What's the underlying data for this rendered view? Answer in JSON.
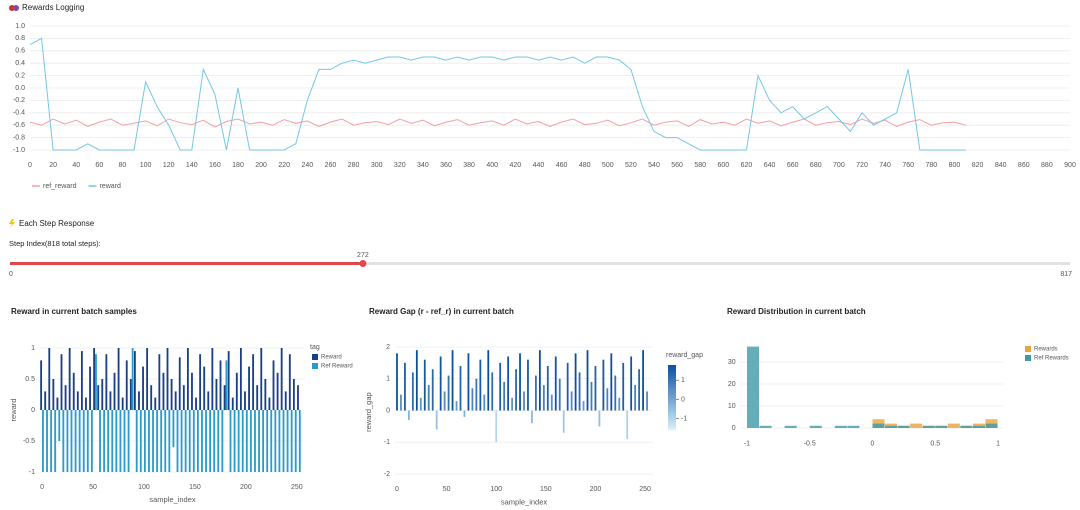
{
  "chart_data": [
    {
      "type": "line",
      "title": "Rewards Logging",
      "x": [
        0,
        10,
        20,
        30,
        40,
        50,
        60,
        70,
        80,
        90,
        100,
        110,
        120,
        130,
        140,
        150,
        160,
        170,
        180,
        190,
        200,
        210,
        220,
        230,
        240,
        250,
        260,
        270,
        280,
        290,
        300,
        310,
        320,
        330,
        340,
        350,
        360,
        370,
        380,
        390,
        400,
        410,
        420,
        430,
        440,
        450,
        460,
        470,
        480,
        490,
        500,
        510,
        520,
        530,
        540,
        550,
        560,
        570,
        580,
        590,
        600,
        610,
        620,
        630,
        640,
        650,
        660,
        670,
        680,
        690,
        700,
        710,
        720,
        730,
        740,
        750,
        760,
        770,
        780,
        790,
        800,
        810
      ],
      "series": [
        {
          "name": "ref_reward",
          "color": "#f2a0a6",
          "values": [
            -0.55,
            -0.6,
            -0.5,
            -0.58,
            -0.52,
            -0.62,
            -0.55,
            -0.5,
            -0.6,
            -0.57,
            -0.53,
            -0.61,
            -0.5,
            -0.56,
            -0.59,
            -0.52,
            -0.63,
            -0.54,
            -0.5,
            -0.58,
            -0.55,
            -0.6,
            -0.51,
            -0.57,
            -0.53,
            -0.62,
            -0.55,
            -0.5,
            -0.6,
            -0.56,
            -0.54,
            -0.59,
            -0.5,
            -0.57,
            -0.52,
            -0.61,
            -0.55,
            -0.51,
            -0.6,
            -0.56,
            -0.53,
            -0.6,
            -0.5,
            -0.58,
            -0.54,
            -0.62,
            -0.55,
            -0.5,
            -0.59,
            -0.57,
            -0.52,
            -0.61,
            -0.56,
            -0.5,
            -0.6,
            -0.55,
            -0.53,
            -0.62,
            -0.51,
            -0.58,
            -0.55,
            -0.6,
            -0.5,
            -0.57,
            -0.53,
            -0.61,
            -0.55,
            -0.5,
            -0.6,
            -0.56,
            -0.54,
            -0.59,
            -0.5,
            -0.57,
            -0.52,
            -0.62,
            -0.55,
            -0.51,
            -0.6,
            -0.56,
            -0.55,
            -0.6
          ]
        },
        {
          "name": "reward",
          "color": "#74c7e6",
          "values": [
            0.7,
            0.8,
            -1,
            -1,
            -1,
            -0.9,
            -1,
            -1,
            -1,
            -1,
            0.1,
            -0.3,
            -0.6,
            -1,
            -1,
            0.3,
            -0.1,
            -1,
            0.0,
            -1,
            -1,
            -1,
            -1,
            -0.9,
            -0.2,
            0.3,
            0.3,
            0.4,
            0.45,
            0.4,
            0.45,
            0.5,
            0.5,
            0.45,
            0.5,
            0.5,
            0.45,
            0.5,
            0.45,
            0.5,
            0.5,
            0.45,
            0.5,
            0.5,
            0.45,
            0.5,
            0.45,
            0.5,
            0.4,
            0.5,
            0.5,
            0.45,
            0.3,
            -0.3,
            -0.7,
            -0.8,
            -0.8,
            -0.9,
            -1,
            -1,
            -1,
            -1,
            -1,
            0.2,
            -0.2,
            -0.4,
            -0.3,
            -0.5,
            -0.4,
            -0.3,
            -0.5,
            -0.7,
            -0.4,
            -0.6,
            -0.5,
            -0.4,
            0.3,
            -1,
            -1,
            -1,
            -1,
            -1
          ]
        }
      ],
      "xlim": [
        0,
        900
      ],
      "xticks": [
        0,
        20,
        40,
        60,
        80,
        100,
        120,
        140,
        160,
        180,
        200,
        220,
        240,
        260,
        280,
        300,
        320,
        340,
        360,
        380,
        400,
        420,
        440,
        460,
        480,
        500,
        520,
        540,
        560,
        580,
        600,
        620,
        640,
        660,
        680,
        700,
        720,
        740,
        760,
        780,
        800,
        820,
        840,
        860,
        880,
        900
      ],
      "ylim": [
        -1.1,
        1.1
      ],
      "yticks": [
        {
          "value": 1,
          "label": "1.0"
        },
        0.8,
        0.6,
        0.4,
        0.2,
        {
          "value": 0,
          "label": "0.0"
        },
        -0.2,
        -0.4,
        -0.6,
        -0.8,
        {
          "value": -1,
          "label": "-1.0"
        }
      ],
      "grid": true,
      "legend": "bottom"
    },
    {
      "type": "bar",
      "title": "Reward in current batch samples",
      "x": [
        0,
        4,
        8,
        12,
        16,
        20,
        24,
        28,
        32,
        36,
        40,
        44,
        48,
        52,
        56,
        60,
        64,
        68,
        72,
        76,
        80,
        84,
        88,
        92,
        96,
        100,
        104,
        108,
        112,
        116,
        120,
        124,
        128,
        132,
        136,
        140,
        144,
        148,
        152,
        156,
        160,
        164,
        168,
        172,
        176,
        180,
        184,
        188,
        192,
        196,
        200,
        204,
        208,
        212,
        216,
        220,
        224,
        228,
        232,
        236,
        240,
        244,
        248,
        252
      ],
      "series": [
        {
          "name": "Reward",
          "color": "#1a3f86",
          "values": [
            0.8,
            0.3,
            1,
            0.5,
            0.2,
            0.9,
            0.4,
            1,
            0.6,
            0.3,
            0.95,
            0.2,
            0.7,
            1,
            0.4,
            0.5,
            0.9,
            0.3,
            0.6,
            1,
            0.2,
            0.8,
            0.5,
            0.95,
            0.3,
            0.7,
            1,
            0.4,
            0.2,
            0.9,
            0.6,
            1,
            0.5,
            0.3,
            0.85,
            0.4,
            1,
            0.6,
            0.2,
            0.9,
            0.7,
            0.3,
            1,
            0.5,
            0.8,
            0.4,
            0.95,
            0.2,
            0.6,
            1,
            0.3,
            0.7,
            0.9,
            0.4,
            1,
            0.5,
            0.2,
            0.8,
            0.6,
            1,
            0.3,
            0.9,
            0.5,
            0.4
          ]
        },
        {
          "name": "Ref Reward",
          "color": "#2a9ccb",
          "values": [
            -1,
            -1,
            -1,
            -1,
            -0.5,
            -1,
            -1,
            -1,
            -1,
            -1,
            -1,
            -1,
            -1,
            0.9,
            -1,
            -1,
            -1,
            -1,
            -1,
            -1,
            -1,
            -1,
            1,
            -1,
            -1,
            -1,
            -1,
            -1,
            -1,
            -1,
            -1,
            -1,
            -0.6,
            -1,
            -1,
            -1,
            -1,
            -1,
            -1,
            -1,
            -1,
            -1,
            -1,
            -1,
            -1,
            0.8,
            -1,
            -1,
            -1,
            -1,
            -1,
            -1,
            -1,
            -1,
            -1,
            -1,
            -1,
            -1,
            -1,
            -1,
            -1,
            -1,
            -1,
            -1
          ]
        }
      ],
      "xlim": [
        -2,
        258
      ],
      "xticks": [
        0,
        50,
        100,
        150,
        200,
        250
      ],
      "ylim": [
        -1.1,
        1.1
      ],
      "yticks": [
        1,
        0.5,
        0,
        -0.5,
        -1
      ],
      "xlabel": "sample_index",
      "ylabel": "reward",
      "legend_title": "tag",
      "grid": true,
      "legend": "right"
    },
    {
      "type": "bar",
      "title": "Reward Gap (r - ref_r) in current batch",
      "x": [
        0,
        4,
        8,
        12,
        16,
        20,
        24,
        28,
        32,
        36,
        40,
        44,
        48,
        52,
        56,
        60,
        64,
        68,
        72,
        76,
        80,
        84,
        88,
        92,
        96,
        100,
        104,
        108,
        112,
        116,
        120,
        124,
        128,
        132,
        136,
        140,
        144,
        148,
        152,
        156,
        160,
        164,
        168,
        172,
        176,
        180,
        184,
        188,
        192,
        196,
        200,
        204,
        208,
        212,
        216,
        220,
        224,
        228,
        232,
        236,
        240,
        244,
        248,
        252
      ],
      "series": [
        {
          "name": "reward_gap",
          "values": [
            1.8,
            0.5,
            1.5,
            -0.3,
            1.2,
            1.9,
            0.4,
            1.6,
            0.8,
            1.3,
            -0.6,
            1.7,
            0.6,
            1.1,
            1.9,
            0.3,
            1.4,
            -0.2,
            1.8,
            0.7,
            1.0,
            1.6,
            0.5,
            1.9,
            1.2,
            -1.0,
            1.5,
            0.9,
            1.7,
            0.4,
            1.3,
            1.8,
            0.6,
            1.6,
            -0.4,
            1.1,
            1.9,
            0.8,
            1.4,
            0.5,
            1.7,
            1.0,
            -0.7,
            1.5,
            0.6,
            1.8,
            1.2,
            0.3,
            1.9,
            0.9,
            1.4,
            -0.5,
            1.6,
            0.7,
            1.8,
            1.1,
            0.4,
            1.5,
            -0.9,
            1.7,
            0.8,
            1.3,
            1.9,
            0.6
          ]
        }
      ],
      "colorbar": {
        "ticks": [
          1,
          0,
          -1
        ],
        "clim": [
          -1.6,
          1.8
        ],
        "colors": [
          "#d8f1fb",
          "#0a4f9e"
        ]
      },
      "xlim": [
        -2,
        258
      ],
      "xticks": [
        0,
        50,
        100,
        150,
        200,
        250
      ],
      "ylim": [
        -2.2,
        2.1
      ],
      "yticks": [
        2,
        1,
        0,
        -1,
        -2
      ],
      "xlabel": "sample_index",
      "ylabel": "reward_gap",
      "grid": true
    },
    {
      "type": "histogram",
      "title": "Reward Distribution in current batch",
      "bins": [
        -1,
        -0.9,
        -0.8,
        -0.7,
        -0.6,
        -0.5,
        -0.4,
        -0.3,
        -0.2,
        -0.1,
        0,
        0.1,
        0.2,
        0.3,
        0.4,
        0.5,
        0.6,
        0.7,
        0.8,
        0.9,
        1
      ],
      "series": [
        {
          "name": "Rewards",
          "color": "#e9a43c",
          "values": [
            0,
            0,
            0,
            0,
            0,
            0,
            0,
            0,
            0,
            0,
            4,
            2,
            1,
            2,
            1,
            1,
            2,
            1,
            2,
            4
          ]
        },
        {
          "name": "Ref Rewards",
          "color": "#3f9aa7",
          "values": [
            37,
            1,
            0,
            1,
            0,
            1,
            0,
            1,
            1,
            0,
            2,
            1,
            1,
            0,
            1,
            1,
            0,
            1,
            1,
            2
          ]
        }
      ],
      "xlim": [
        -1.05,
        1.05
      ],
      "xticks": [
        -1,
        -0.5,
        0,
        0.5,
        1
      ],
      "ylim": [
        -3,
        40
      ],
      "yticks": [
        0,
        10,
        20,
        30
      ],
      "grid": true,
      "legend": "right"
    }
  ],
  "step_section": {
    "title": "Each Step Response",
    "label": "Step Index(818 total steps):",
    "min": 0,
    "max": 817,
    "value": 272,
    "color": "#e0474c"
  }
}
